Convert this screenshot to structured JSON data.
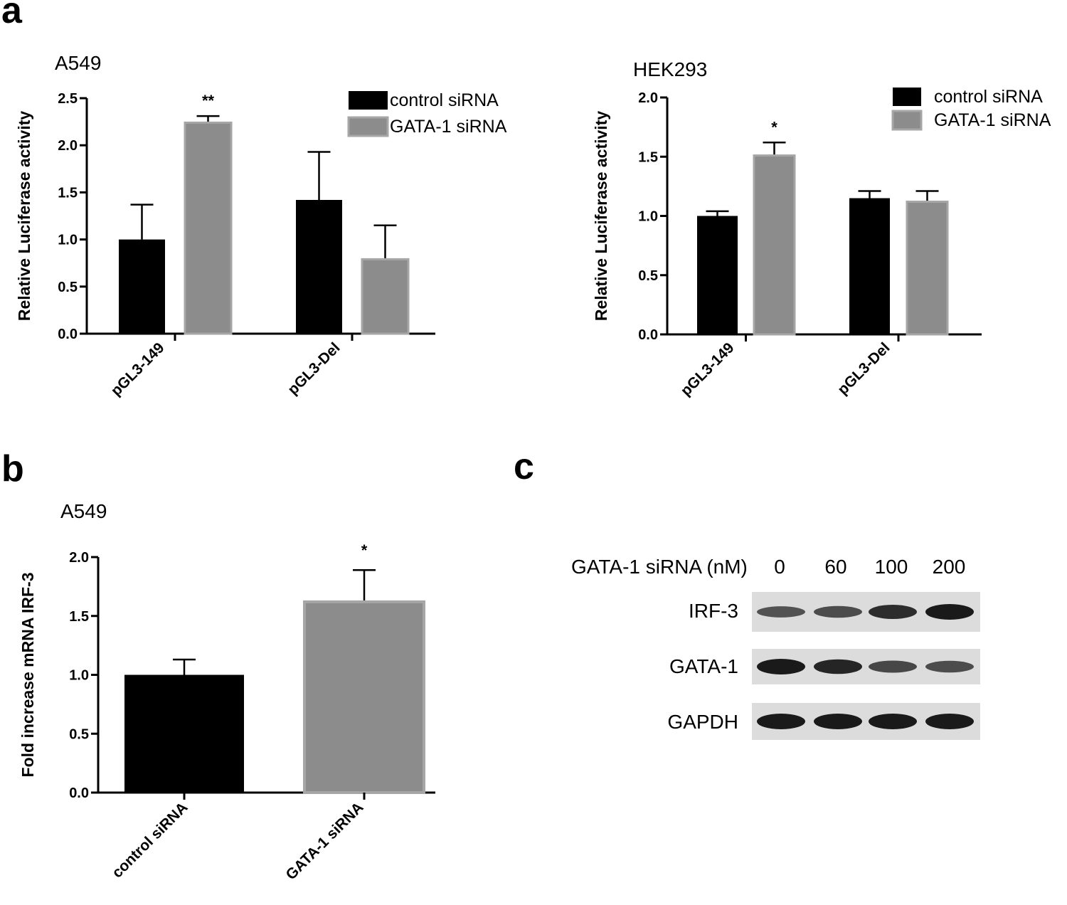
{
  "panels": {
    "a": "a",
    "b": "b",
    "c": "c"
  },
  "colors": {
    "control": "#000000",
    "gata1": "#8c8c8c",
    "gata1_edge": "#a6a6a6",
    "blot_bg": "#dcdcdc",
    "band": "#1a1a1a"
  },
  "chart_data": [
    {
      "id": "a549-luciferase",
      "type": "bar",
      "title": "A549",
      "ylabel": "Relative Luciferase activity",
      "xlabel": "",
      "ylim": [
        0,
        2.5
      ],
      "yticks": [
        "0.0",
        "0.5",
        "1.0",
        "1.5",
        "2.0",
        "2.5"
      ],
      "categories": [
        "pGL3-149",
        "pGL3-Del"
      ],
      "series": [
        {
          "name": "control siRNA",
          "values": [
            1.0,
            1.42
          ],
          "errors": [
            0.37,
            0.51
          ]
        },
        {
          "name": "GATA-1 siRNA",
          "values": [
            2.24,
            0.79
          ],
          "errors": [
            0.07,
            0.36
          ]
        }
      ],
      "annotations": [
        "**"
      ],
      "legend": "top-right"
    },
    {
      "id": "hek293-luciferase",
      "type": "bar",
      "title": "HEK293",
      "ylabel": "Relative Luciferase activity",
      "xlabel": "",
      "ylim": [
        0,
        2.0
      ],
      "yticks": [
        "0.0",
        "0.5",
        "1.0",
        "1.5",
        "2.0"
      ],
      "categories": [
        "pGL3-149",
        "pGL3-Del"
      ],
      "series": [
        {
          "name": "control siRNA",
          "values": [
            1.0,
            1.15
          ],
          "errors": [
            0.04,
            0.06
          ]
        },
        {
          "name": "GATA-1 siRNA",
          "values": [
            1.51,
            1.12
          ],
          "errors": [
            0.11,
            0.09
          ]
        }
      ],
      "annotations": [
        "*"
      ],
      "legend": "top-right"
    },
    {
      "id": "a549-mrna",
      "type": "bar",
      "title": "A549",
      "ylabel": "Fold increase mRNA IRF-3",
      "xlabel": "",
      "ylim": [
        0,
        2.0
      ],
      "yticks": [
        "0.0",
        "0.5",
        "1.0",
        "1.5",
        "2.0"
      ],
      "categories": [
        "control siRNA",
        "GATA-1 siRNA"
      ],
      "values": [
        1.0,
        1.62
      ],
      "errors": [
        0.13,
        0.27
      ],
      "annotations": [
        "*"
      ]
    }
  ],
  "blot": {
    "header_label": "GATA-1 siRNA (nM)",
    "lanes": [
      "0",
      "60",
      "100",
      "200"
    ],
    "rows": [
      {
        "label": "IRF-3",
        "intensity": [
          0.55,
          0.6,
          0.85,
          1.0
        ]
      },
      {
        "label": "GATA-1",
        "intensity": [
          1.0,
          0.9,
          0.65,
          0.6
        ]
      },
      {
        "label": "GAPDH",
        "intensity": [
          1.0,
          1.0,
          1.0,
          1.0
        ]
      }
    ]
  }
}
